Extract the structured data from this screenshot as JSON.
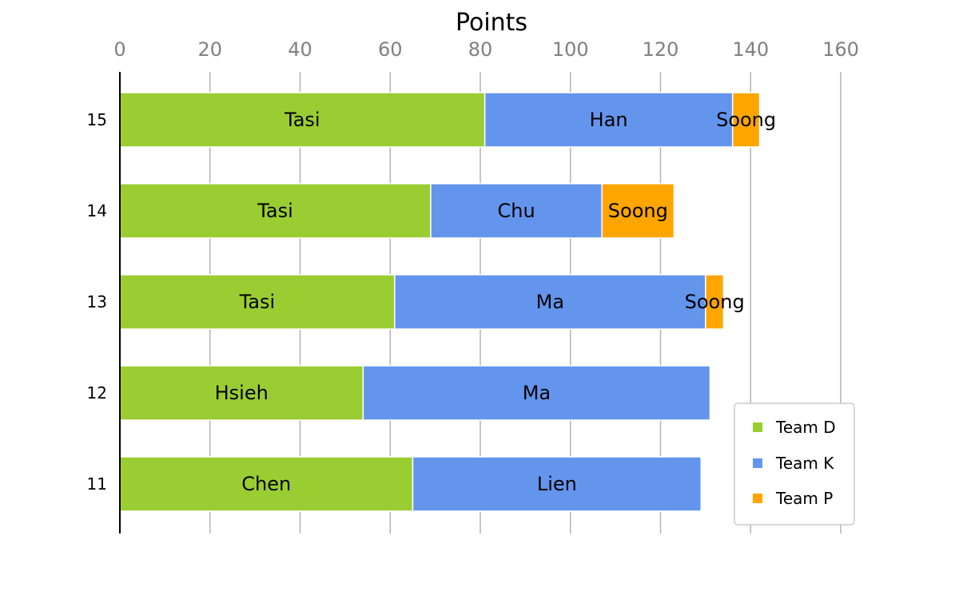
{
  "chart_data": {
    "type": "bar",
    "orientation": "horizontal",
    "stacked": true,
    "title": "Points",
    "xlabel": "Points",
    "ylabel": "",
    "xlim": [
      0,
      160
    ],
    "xticks": [
      0,
      20,
      40,
      60,
      80,
      100,
      120,
      140,
      160
    ],
    "categories": [
      "15",
      "14",
      "13",
      "12",
      "11"
    ],
    "grid": "vertical",
    "legend_position": "bottom-right",
    "series": [
      {
        "name": "Team D",
        "color": "#9ACD32",
        "values": [
          81,
          69,
          61,
          54,
          65
        ],
        "labels": [
          "Tasi",
          "Tasi",
          "Tasi",
          "Hsieh",
          "Chen"
        ]
      },
      {
        "name": "Team K",
        "color": "#6495ED",
        "values": [
          55,
          38,
          69,
          77,
          64
        ],
        "labels": [
          "Han",
          "Chu",
          "Ma",
          "Ma",
          "Lien"
        ]
      },
      {
        "name": "Team P",
        "color": "#FFA500",
        "values": [
          6,
          16,
          4,
          0,
          0
        ],
        "labels": [
          "Soong",
          "Soong",
          "Soong",
          "",
          ""
        ]
      }
    ]
  }
}
